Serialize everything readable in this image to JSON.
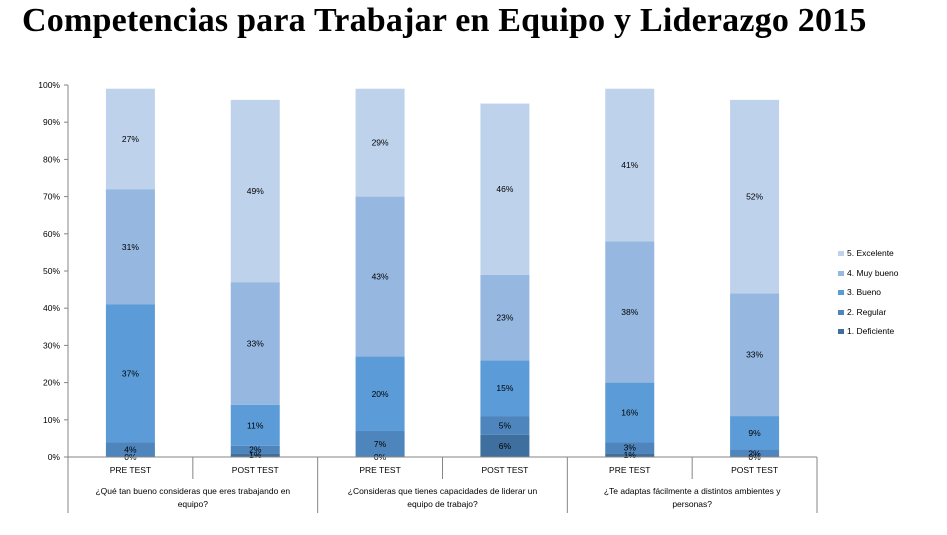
{
  "title": "Competencias para Trabajar en Equipo y Liderazgo 2015",
  "chart_data": {
    "type": "bar",
    "stacked": true,
    "percent": true,
    "title": "Competencias para Trabajar en Equipo y Liderazgo 2015",
    "ylim": [
      0,
      100
    ],
    "y_ticks": [
      "0%",
      "10%",
      "20%",
      "30%",
      "40%",
      "50%",
      "60%",
      "70%",
      "80%",
      "90%",
      "100%"
    ],
    "groups": [
      {
        "label": "¿Qué tan bueno consideras que eres trabajando en equipo?",
        "lines": [
          "¿Qué tan bueno consideras que eres trabajando en",
          "equipo?"
        ]
      },
      {
        "label": "¿Consideras que tienes capacidades de liderar un equipo de trabajo?",
        "lines": [
          "¿Consideras que tienes capacidades de liderar un",
          "equipo de trabajo?"
        ]
      },
      {
        "label": "¿Te adaptas fácilmente a distintos ambientes y personas?",
        "lines": [
          "¿Te adaptas fácilmente a distintos ambientes y",
          "personas?"
        ]
      }
    ],
    "categories": [
      "PRE TEST",
      "POST TEST",
      "PRE TEST",
      "POST TEST",
      "PRE TEST",
      "POST TEST"
    ],
    "series": [
      {
        "name": "1. Deficiente",
        "color": "#3e6f9e",
        "values": [
          0,
          1,
          0,
          6,
          1,
          0
        ],
        "labels": [
          "0%",
          "1%",
          "0%",
          "6%",
          "1%",
          "0%"
        ]
      },
      {
        "name": "2. Regular",
        "color": "#4e85bd",
        "values": [
          4,
          2,
          7,
          5,
          3,
          2
        ],
        "labels": [
          "4%",
          "2%",
          "7%",
          "5%",
          "3%",
          "2%"
        ]
      },
      {
        "name": "3. Bueno",
        "color": "#5b9bd8",
        "values": [
          37,
          11,
          20,
          15,
          16,
          9
        ],
        "labels": [
          "37%",
          "11%",
          "20%",
          "15%",
          "16%",
          "9%"
        ]
      },
      {
        "name": "4. Muy bueno",
        "color": "#95b7e0",
        "values": [
          31,
          33,
          43,
          23,
          38,
          33
        ],
        "labels": [
          "31%",
          "33%",
          "43%",
          "23%",
          "38%",
          "33%"
        ]
      },
      {
        "name": "5. Excelente",
        "color": "#bed2ec",
        "values": [
          27,
          49,
          29,
          46,
          41,
          52
        ],
        "labels": [
          "27%",
          "49%",
          "29%",
          "46%",
          "41%",
          "52%"
        ]
      }
    ],
    "legend_position": "right",
    "grid": false
  }
}
